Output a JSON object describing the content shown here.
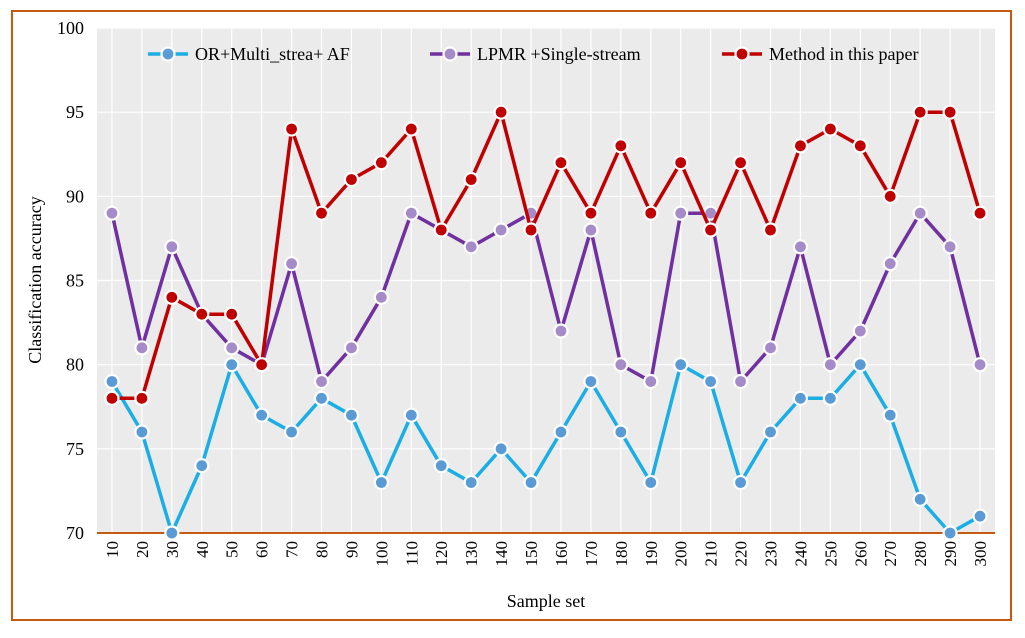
{
  "chart_data": {
    "type": "line",
    "title": "",
    "xlabel": "Sample set",
    "ylabel": "Classification accuracy",
    "ylim": [
      70,
      100
    ],
    "yticks": [
      70,
      75,
      80,
      85,
      90,
      95,
      100
    ],
    "grid": true,
    "legend_position": "top",
    "background_color": "#ebebeb",
    "frame_color": "#c55a11",
    "x": [
      10,
      20,
      30,
      40,
      50,
      60,
      70,
      80,
      90,
      100,
      110,
      120,
      130,
      140,
      150,
      160,
      170,
      180,
      190,
      200,
      210,
      220,
      230,
      240,
      250,
      260,
      270,
      280,
      290,
      300
    ],
    "x_tick_labels": [
      "10",
      "20",
      "30",
      "40",
      "50",
      "60",
      "70",
      "80",
      "90",
      "100",
      "110",
      "120",
      "130",
      "140",
      "150",
      "160",
      "170",
      "180",
      "190",
      "200",
      "210",
      "220",
      "230",
      "240",
      "250",
      "260",
      "270",
      "280",
      "290",
      "300"
    ],
    "series": [
      {
        "name": "OR+Multi_strea+ AF",
        "color": "#1aaee5",
        "marker_color": "#5b9bd5",
        "values": [
          79,
          76,
          70,
          74,
          80,
          77,
          76,
          78,
          77,
          73,
          77,
          74,
          73,
          75,
          73,
          76,
          79,
          76,
          73,
          80,
          79,
          73,
          76,
          78,
          78,
          80,
          77,
          72,
          70,
          71
        ]
      },
      {
        "name": "LPMR +Single-stream",
        "color": "#7030a0",
        "marker_color": "#a58cc8",
        "values": [
          89,
          81,
          87,
          83,
          81,
          80,
          86,
          79,
          81,
          84,
          89,
          88,
          87,
          88,
          89,
          82,
          88,
          80,
          79,
          89,
          89,
          79,
          81,
          87,
          80,
          82,
          86,
          89,
          87,
          80
        ]
      },
      {
        "name": "Method in this paper",
        "color": "#c00000",
        "marker_color": "#c00000",
        "values": [
          78,
          78,
          84,
          83,
          83,
          80,
          94,
          89,
          91,
          92,
          94,
          88,
          91,
          95,
          88,
          92,
          89,
          93,
          89,
          92,
          88,
          92,
          88,
          93,
          94,
          93,
          90,
          95,
          95,
          89
        ]
      }
    ]
  }
}
